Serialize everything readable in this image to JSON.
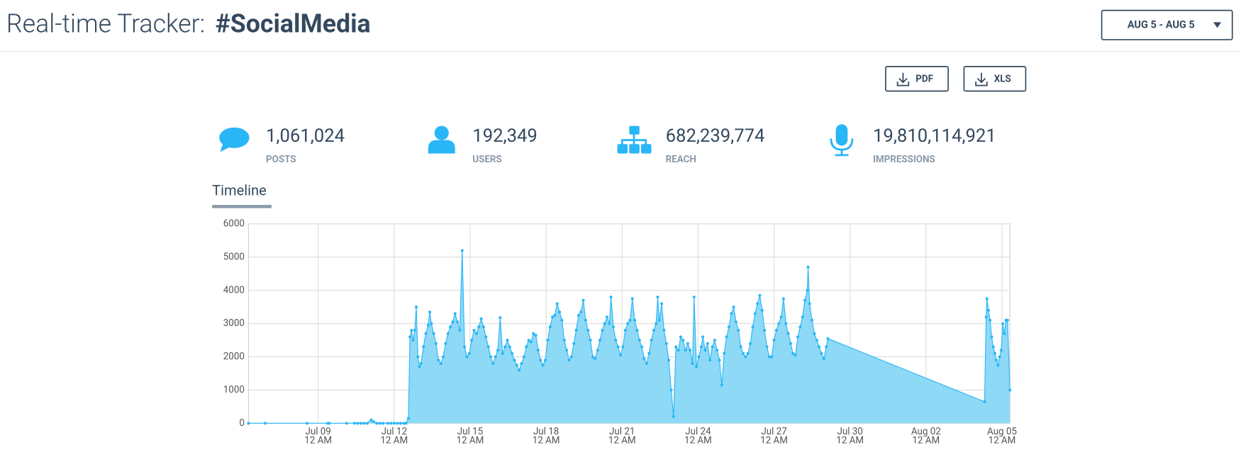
{
  "header": {
    "title": "Real-time Tracker:",
    "hashtag": "#SocialMedia",
    "date_range": "AUG 5 - AUG 5"
  },
  "export_buttons": [
    "PDF",
    "XLS"
  ],
  "stats": [
    {
      "value": "1,061,024",
      "label": "POSTS"
    },
    {
      "value": "192,349",
      "label": "USERS"
    },
    {
      "value": "682,239,774",
      "label": "REACH"
    },
    {
      "value": "19,810,114,921",
      "label": "IMPRESSIONS"
    }
  ],
  "tab": "Timeline",
  "chart_data": {
    "type": "area",
    "color": "#29b6f6",
    "fill": "#8ed9f6",
    "grid": true,
    "xlim": [
      -66,
      655.5
    ],
    "xticks": [
      {
        "value": 0,
        "label": [
          "Jul 09",
          "12 AM"
        ]
      },
      {
        "value": 72,
        "label": [
          "Jul 12",
          "12 AM"
        ]
      },
      {
        "value": 144,
        "label": [
          "Jul 15",
          "12 AM"
        ]
      },
      {
        "value": 216,
        "label": [
          "Jul 18",
          "12 AM"
        ]
      },
      {
        "value": 288,
        "label": [
          "Jul 21",
          "12 AM"
        ]
      },
      {
        "value": 360,
        "label": [
          "Jul 24",
          "12 AM"
        ]
      },
      {
        "value": 432,
        "label": [
          "Jul 27",
          "12 AM"
        ]
      },
      {
        "value": 504,
        "label": [
          "Jul 30",
          "12 AM"
        ]
      },
      {
        "value": 576,
        "label": [
          "Aug 02",
          "12 AM"
        ]
      },
      {
        "value": 648,
        "label": [
          "Aug 05",
          "12 AM"
        ]
      }
    ],
    "ylim": [
      0,
      6000
    ],
    "yticks": [
      0,
      1000,
      2000,
      3000,
      4000,
      5000,
      6000
    ],
    "x": [
      -66,
      -50.25,
      -10.5,
      9,
      10.5,
      27,
      34.5,
      37.5,
      40.5,
      43.5,
      46.5,
      50.25,
      52.5,
      55.5,
      58.5,
      61.5,
      66,
      69,
      72,
      75,
      78,
      81,
      83.25,
      85.5,
      87,
      88.5,
      90,
      91.5,
      93,
      94.5,
      96,
      97.5,
      99.75,
      102,
      104.25,
      105.75,
      107.25,
      109.5,
      111.75,
      114,
      116.25,
      118.5,
      120.75,
      123,
      125.25,
      127.5,
      129.75,
      132,
      134.25,
      136.5,
      138.75,
      141,
      143.25,
      145.5,
      147.75,
      150,
      152.25,
      154.5,
      156.75,
      159,
      161.25,
      163.5,
      165.75,
      168,
      170.25,
      172.5,
      174.75,
      177,
      179.25,
      181.5,
      183.75,
      186,
      188.25,
      190.5,
      192.75,
      195,
      197.25,
      199.5,
      201.75,
      204,
      206.25,
      208.5,
      210.75,
      213,
      215.25,
      217.5,
      219.75,
      222,
      224.25,
      226.5,
      228.75,
      231,
      233.25,
      235.5,
      237.75,
      240,
      242.25,
      244.5,
      246.75,
      249,
      251.25,
      253.5,
      255.75,
      258,
      260.25,
      262.5,
      264.75,
      267,
      269.25,
      271.5,
      273.75,
      276,
      277.5,
      279.75,
      282,
      284.25,
      286.5,
      288.75,
      291,
      293.25,
      295.5,
      297.75,
      300,
      302.25,
      304.5,
      306.75,
      309,
      311.25,
      313.5,
      315.75,
      318,
      320.25,
      321.75,
      323.25,
      325.5,
      327.75,
      330,
      332.25,
      334.5,
      336.75,
      339,
      341.25,
      343.5,
      345.75,
      348,
      350.25,
      352.5,
      354.75,
      356.25,
      358.5,
      360.75,
      363,
      364.5,
      366.75,
      369,
      371.25,
      373.5,
      375.75,
      378,
      380.25,
      382.5,
      384.75,
      387,
      389.25,
      391.5,
      393.75,
      396,
      398.25,
      400.5,
      402.75,
      405,
      407.25,
      409.5,
      411.75,
      414,
      416.25,
      418.5,
      420.75,
      423,
      425.25,
      427.5,
      429.75,
      432,
      434.25,
      436.5,
      438.75,
      441,
      443.25,
      445.5,
      447.75,
      450,
      452.25,
      454.5,
      456.75,
      459,
      461.25,
      463.5,
      464.25,
      465.75,
      468,
      470.25,
      472.5,
      474.75,
      477,
      479.25,
      481.5,
      483,
      631.5,
      633,
      633.75,
      635.25,
      636.75,
      638.25,
      639.75,
      641.25,
      642.75,
      644.25,
      645.75,
      647.25,
      648.75,
      650.25,
      651.75,
      653.25,
      655.5
    ],
    "values": [
      0,
      0,
      0,
      0,
      0,
      0,
      0,
      0,
      0,
      0,
      0,
      100,
      50,
      0,
      0,
      0,
      0,
      0,
      0,
      0,
      0,
      0,
      0,
      150,
      2600,
      2800,
      2500,
      2800,
      3500,
      2000,
      1700,
      1800,
      2300,
      2700,
      2950,
      3350,
      3000,
      2700,
      2400,
      1900,
      1800,
      2000,
      2400,
      2700,
      2900,
      3050,
      3300,
      3050,
      2800,
      5200,
      2300,
      2000,
      2100,
      2500,
      2800,
      2700,
      2900,
      3150,
      2900,
      2600,
      2300,
      2000,
      1800,
      2000,
      2200,
      3180,
      2100,
      2300,
      2500,
      2300,
      2100,
      1900,
      1750,
      1600,
      1800,
      2000,
      2300,
      2500,
      2450,
      2700,
      2650,
      2200,
      1900,
      1750,
      1900,
      2500,
      2900,
      3200,
      3250,
      3600,
      3350,
      3100,
      2500,
      2200,
      1900,
      2000,
      2400,
      2800,
      3250,
      3350,
      3700,
      3100,
      2800,
      2500,
      2000,
      1950,
      2200,
      2500,
      2800,
      3000,
      3200,
      3000,
      3800,
      2900,
      2500,
      2300,
      2050,
      2300,
      2800,
      3000,
      3100,
      3750,
      3100,
      2800,
      2500,
      2300,
      1950,
      1800,
      2100,
      2500,
      2800,
      3000,
      3800,
      3100,
      3600,
      2800,
      2400,
      1900,
      1000,
      200,
      2300,
      2200,
      2600,
      2500,
      2200,
      2400,
      2200,
      1800,
      3800,
      1700,
      2000,
      2300,
      2600,
      2200,
      2400,
      1900,
      2300,
      2500,
      2200,
      1900,
      1150,
      2100,
      2600,
      2900,
      3300,
      3500,
      3050,
      2800,
      2300,
      2100,
      2000,
      2100,
      2400,
      2900,
      3300,
      3600,
      3850,
      3400,
      2800,
      2300,
      2000,
      2000,
      2500,
      2800,
      3000,
      3200,
      3750,
      3000,
      2700,
      2400,
      2100,
      2050,
      2600,
      2900,
      3200,
      3700,
      4000,
      4700,
      3600,
      3100,
      2700,
      2500,
      2300,
      2100,
      1950,
      2300,
      2550,
      650,
      3200,
      3750,
      3400,
      3100,
      2600,
      2300,
      2100,
      1900,
      1750,
      2000,
      2200,
      3000,
      2700,
      3100,
      3100,
      1000
    ]
  }
}
